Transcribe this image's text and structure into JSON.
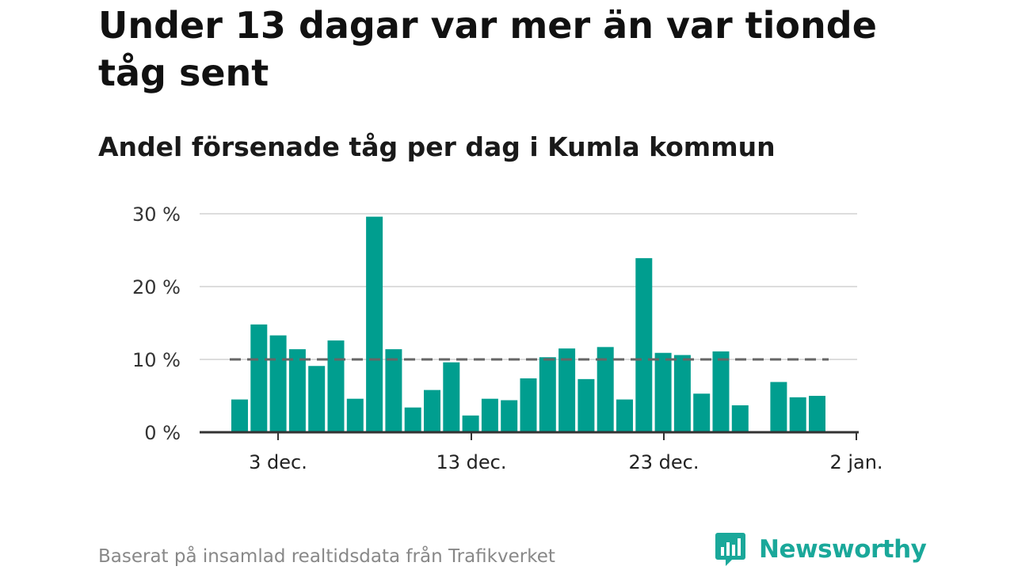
{
  "header": {
    "title": "Under 13 dagar var mer än var tionde tåg sent",
    "subtitle": "Andel försenade tåg per dag i Kumla kommun"
  },
  "footer": {
    "source": "Baserat på insamlad realtidsdata från Trafikverket",
    "brand": "Newsworthy"
  },
  "colors": {
    "bar": "#009e8f",
    "reference_line": "#666666",
    "grid": "#dddddd",
    "axis": "#333333",
    "brand": "#1aa89a"
  },
  "icons": {
    "brand_logo": "newsworthy-bar-chart-bubble-icon"
  },
  "chart_data": {
    "type": "bar",
    "title": "Under 13 dagar var mer än var tionde tåg sent",
    "subtitle": "Andel försenade tåg per dag i Kumla kommun",
    "xlabel": "",
    "ylabel": "",
    "x_unit": "day",
    "x_start": "2024-12-01",
    "categories": [
      "1 dec.",
      "2 dec.",
      "3 dec.",
      "4 dec.",
      "5 dec.",
      "6 dec.",
      "7 dec.",
      "8 dec.",
      "9 dec.",
      "10 dec.",
      "11 dec.",
      "12 dec.",
      "13 dec.",
      "14 dec.",
      "15 dec.",
      "16 dec.",
      "17 dec.",
      "18 dec.",
      "19 dec.",
      "20 dec.",
      "21 dec.",
      "22 dec.",
      "23 dec.",
      "24 dec.",
      "25 dec.",
      "26 dec.",
      "27 dec.",
      "28 dec.",
      "29 dec.",
      "30 dec.",
      "31 dec."
    ],
    "values": [
      4.5,
      14.8,
      13.3,
      11.4,
      9.1,
      12.6,
      4.6,
      29.6,
      11.4,
      3.4,
      5.8,
      9.6,
      2.3,
      4.6,
      4.4,
      7.4,
      10.3,
      11.5,
      7.3,
      11.7,
      4.5,
      23.9,
      10.9,
      10.6,
      5.3,
      11.1,
      3.7,
      null,
      6.9,
      4.8,
      5.0
    ],
    "reference_line": {
      "value": 10
    },
    "x_ticks": [
      "3 dec.",
      "13 dec.",
      "23 dec.",
      "2 jan."
    ],
    "x_tick_positions": [
      2,
      12,
      22,
      32
    ],
    "y_ticks": [
      "0 %",
      "10 %",
      "20 %",
      "30 %"
    ],
    "y_tick_values": [
      0,
      10,
      20,
      30
    ],
    "ylim": [
      0,
      30
    ],
    "grid": true,
    "legend": "none"
  }
}
